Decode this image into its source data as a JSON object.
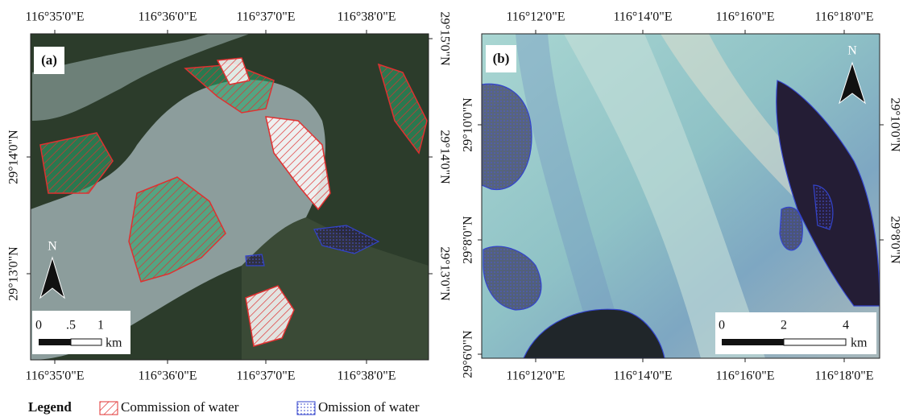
{
  "panel_a": {
    "label": "(a)",
    "top_ticks": [
      "116°35'0\"E",
      "116°36'0\"E",
      "116°37'0\"E",
      "116°38'0\"E"
    ],
    "bottom_ticks": [
      "116°35'0\"E",
      "116°36'0\"E",
      "116°37'0\"E",
      "116°38'0\"E"
    ],
    "left_ticks": [
      "29°14'0\"N",
      "29°13'0\"N"
    ],
    "right_ticks": [
      "29°15'0\"N",
      "29°14'0\"N",
      "29°13'0\"N"
    ],
    "north": "N",
    "scale": [
      "0",
      ".5",
      "1"
    ],
    "scale_unit": "km"
  },
  "panel_b": {
    "label": "(b)",
    "top_ticks": [
      "116°12'0\"E",
      "116°14'0\"E",
      "116°16'0\"E",
      "116°18'0\"E"
    ],
    "bottom_ticks": [
      "116°12'0\"E",
      "116°14'0\"E",
      "116°16'0\"E",
      "116°18'0\"E"
    ],
    "left_ticks": [
      "29°10'0\"N",
      "29°8'0\"N",
      "29°6'0\"N"
    ],
    "right_ticks": [
      "29°10'0\"N",
      "29°8'0\"N"
    ],
    "north": "N",
    "scale": [
      "0",
      "2",
      "4"
    ],
    "scale_unit": "km"
  },
  "legend": {
    "title": "Legend",
    "items": [
      "Commission of water",
      "Omission of water"
    ]
  }
}
